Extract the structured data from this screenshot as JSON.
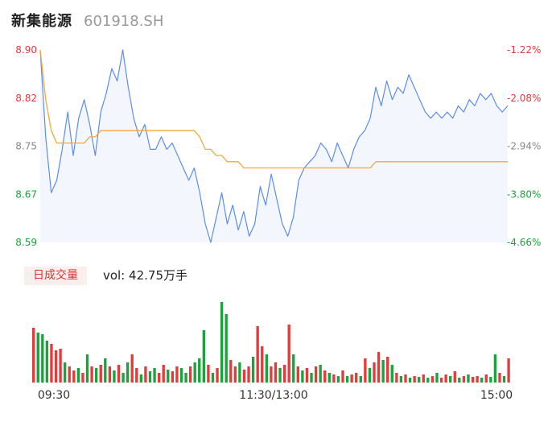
{
  "header": {
    "name": "新集能源",
    "code": "601918.SH"
  },
  "colors": {
    "price": "#5b8def",
    "avg": "#f2a93b",
    "up": "#e33b3b",
    "down": "#19a33a",
    "fill": "#f4f6fd"
  },
  "volume": {
    "tag": "日成交量",
    "label": "vol: 42.75万手"
  },
  "chart_data": {
    "type": "line",
    "title": "",
    "ylim": [
      8.59,
      8.9
    ],
    "y_ticks_left": [
      "8.90",
      "8.82",
      "8.75",
      "8.67",
      "8.59"
    ],
    "y_ticks_right": [
      "-1.22%",
      "-2.08%",
      "-2.94%",
      "-3.80%",
      "-4.66%"
    ],
    "x_ticks": [
      "09:30",
      "11:30/13:00",
      "15:00"
    ],
    "series": [
      {
        "key": "price",
        "values": [
          8.9,
          8.76,
          8.67,
          8.69,
          8.74,
          8.8,
          8.73,
          8.79,
          8.82,
          8.78,
          8.73,
          8.8,
          8.83,
          8.87,
          8.85,
          8.9,
          8.84,
          8.79,
          8.76,
          8.78,
          8.74,
          8.74,
          8.76,
          8.74,
          8.75,
          8.73,
          8.71,
          8.69,
          8.71,
          8.67,
          8.62,
          8.59,
          8.63,
          8.67,
          8.62,
          8.65,
          8.61,
          8.64,
          8.6,
          8.62,
          8.68,
          8.65,
          8.7,
          8.66,
          8.62,
          8.6,
          8.63,
          8.69,
          8.71,
          8.72,
          8.73,
          8.75,
          8.74,
          8.72,
          8.75,
          8.73,
          8.71,
          8.74,
          8.76,
          8.77,
          8.79,
          8.84,
          8.81,
          8.85,
          8.82,
          8.84,
          8.83,
          8.86,
          8.84,
          8.82,
          8.8,
          8.79,
          8.8,
          8.79,
          8.8,
          8.79,
          8.81,
          8.8,
          8.82,
          8.81,
          8.83,
          8.82,
          8.83,
          8.81,
          8.8,
          8.81
        ]
      },
      {
        "key": "avg",
        "values": [
          8.9,
          8.82,
          8.77,
          8.75,
          8.75,
          8.75,
          8.75,
          8.75,
          8.75,
          8.76,
          8.76,
          8.77,
          8.77,
          8.77,
          8.77,
          8.77,
          8.77,
          8.77,
          8.77,
          8.77,
          8.77,
          8.77,
          8.77,
          8.77,
          8.77,
          8.77,
          8.77,
          8.77,
          8.77,
          8.76,
          8.74,
          8.74,
          8.73,
          8.73,
          8.72,
          8.72,
          8.72,
          8.71,
          8.71,
          8.71,
          8.71,
          8.71,
          8.71,
          8.71,
          8.71,
          8.71,
          8.71,
          8.71,
          8.71,
          8.71,
          8.71,
          8.71,
          8.71,
          8.71,
          8.71,
          8.71,
          8.71,
          8.71,
          8.71,
          8.71,
          8.71,
          8.72,
          8.72,
          8.72,
          8.72,
          8.72,
          8.72,
          8.72,
          8.72,
          8.72,
          8.72,
          8.72,
          8.72,
          8.72,
          8.72,
          8.72,
          8.72,
          8.72,
          8.72,
          8.72,
          8.72,
          8.72,
          8.72,
          8.72,
          8.72,
          8.72
        ]
      }
    ],
    "volume_series": [
      {
        "v": 0.68,
        "d": "r"
      },
      {
        "v": 0.62,
        "d": "g"
      },
      {
        "v": 0.6,
        "d": "g"
      },
      {
        "v": 0.52,
        "d": "g"
      },
      {
        "v": 0.48,
        "d": "r"
      },
      {
        "v": 0.4,
        "d": "r"
      },
      {
        "v": 0.42,
        "d": "r"
      },
      {
        "v": 0.25,
        "d": "g"
      },
      {
        "v": 0.2,
        "d": "r"
      },
      {
        "v": 0.15,
        "d": "r"
      },
      {
        "v": 0.18,
        "d": "g"
      },
      {
        "v": 0.12,
        "d": "r"
      },
      {
        "v": 0.35,
        "d": "g"
      },
      {
        "v": 0.2,
        "d": "r"
      },
      {
        "v": 0.18,
        "d": "g"
      },
      {
        "v": 0.22,
        "d": "r"
      },
      {
        "v": 0.3,
        "d": "g"
      },
      {
        "v": 0.2,
        "d": "r"
      },
      {
        "v": 0.15,
        "d": "g"
      },
      {
        "v": 0.22,
        "d": "r"
      },
      {
        "v": 0.12,
        "d": "g"
      },
      {
        "v": 0.25,
        "d": "g"
      },
      {
        "v": 0.35,
        "d": "r"
      },
      {
        "v": 0.18,
        "d": "r"
      },
      {
        "v": 0.1,
        "d": "g"
      },
      {
        "v": 0.2,
        "d": "r"
      },
      {
        "v": 0.14,
        "d": "g"
      },
      {
        "v": 0.18,
        "d": "g"
      },
      {
        "v": 0.12,
        "d": "r"
      },
      {
        "v": 0.22,
        "d": "r"
      },
      {
        "v": 0.16,
        "d": "g"
      },
      {
        "v": 0.14,
        "d": "r"
      },
      {
        "v": 0.2,
        "d": "r"
      },
      {
        "v": 0.18,
        "d": "g"
      },
      {
        "v": 0.12,
        "d": "g"
      },
      {
        "v": 0.2,
        "d": "r"
      },
      {
        "v": 0.25,
        "d": "g"
      },
      {
        "v": 0.3,
        "d": "g"
      },
      {
        "v": 0.65,
        "d": "g"
      },
      {
        "v": 0.22,
        "d": "r"
      },
      {
        "v": 0.12,
        "d": "g"
      },
      {
        "v": 0.18,
        "d": "r"
      },
      {
        "v": 1.0,
        "d": "g"
      },
      {
        "v": 0.85,
        "d": "g"
      },
      {
        "v": 0.28,
        "d": "r"
      },
      {
        "v": 0.2,
        "d": "r"
      },
      {
        "v": 0.25,
        "d": "g"
      },
      {
        "v": 0.16,
        "d": "r"
      },
      {
        "v": 0.2,
        "d": "r"
      },
      {
        "v": 0.32,
        "d": "g"
      },
      {
        "v": 0.7,
        "d": "r"
      },
      {
        "v": 0.45,
        "d": "r"
      },
      {
        "v": 0.35,
        "d": "g"
      },
      {
        "v": 0.2,
        "d": "r"
      },
      {
        "v": 0.25,
        "d": "r"
      },
      {
        "v": 0.18,
        "d": "g"
      },
      {
        "v": 0.22,
        "d": "r"
      },
      {
        "v": 0.72,
        "d": "r"
      },
      {
        "v": 0.35,
        "d": "g"
      },
      {
        "v": 0.2,
        "d": "r"
      },
      {
        "v": 0.15,
        "d": "g"
      },
      {
        "v": 0.18,
        "d": "r"
      },
      {
        "v": 0.12,
        "d": "g"
      },
      {
        "v": 0.2,
        "d": "r"
      },
      {
        "v": 0.22,
        "d": "g"
      },
      {
        "v": 0.15,
        "d": "r"
      },
      {
        "v": 0.12,
        "d": "g"
      },
      {
        "v": 0.1,
        "d": "r"
      },
      {
        "v": 0.08,
        "d": "g"
      },
      {
        "v": 0.15,
        "d": "r"
      },
      {
        "v": 0.08,
        "d": "g"
      },
      {
        "v": 0.1,
        "d": "r"
      },
      {
        "v": 0.12,
        "d": "r"
      },
      {
        "v": 0.08,
        "d": "g"
      },
      {
        "v": 0.3,
        "d": "r"
      },
      {
        "v": 0.18,
        "d": "g"
      },
      {
        "v": 0.25,
        "d": "r"
      },
      {
        "v": 0.38,
        "d": "r"
      },
      {
        "v": 0.28,
        "d": "g"
      },
      {
        "v": 0.32,
        "d": "r"
      },
      {
        "v": 0.22,
        "d": "g"
      },
      {
        "v": 0.12,
        "d": "r"
      },
      {
        "v": 0.08,
        "d": "g"
      },
      {
        "v": 0.1,
        "d": "r"
      },
      {
        "v": 0.06,
        "d": "g"
      },
      {
        "v": 0.08,
        "d": "r"
      },
      {
        "v": 0.07,
        "d": "g"
      },
      {
        "v": 0.1,
        "d": "r"
      },
      {
        "v": 0.06,
        "d": "g"
      },
      {
        "v": 0.08,
        "d": "r"
      },
      {
        "v": 0.12,
        "d": "g"
      },
      {
        "v": 0.06,
        "d": "r"
      },
      {
        "v": 0.1,
        "d": "r"
      },
      {
        "v": 0.08,
        "d": "g"
      },
      {
        "v": 0.14,
        "d": "r"
      },
      {
        "v": 0.06,
        "d": "g"
      },
      {
        "v": 0.08,
        "d": "r"
      },
      {
        "v": 0.1,
        "d": "g"
      },
      {
        "v": 0.07,
        "d": "r"
      },
      {
        "v": 0.08,
        "d": "r"
      },
      {
        "v": 0.06,
        "d": "g"
      },
      {
        "v": 0.1,
        "d": "r"
      },
      {
        "v": 0.07,
        "d": "g"
      },
      {
        "v": 0.35,
        "d": "g"
      },
      {
        "v": 0.12,
        "d": "r"
      },
      {
        "v": 0.08,
        "d": "g"
      },
      {
        "v": 0.3,
        "d": "r"
      }
    ]
  }
}
